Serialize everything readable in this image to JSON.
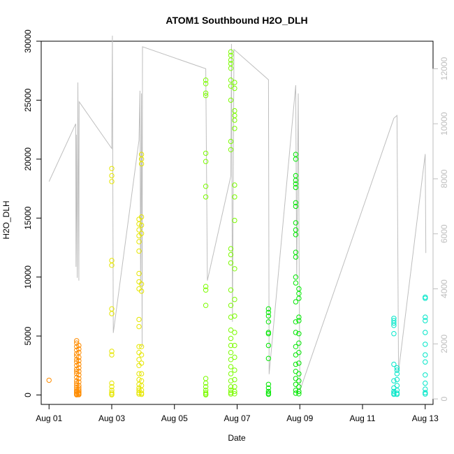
{
  "chart_data": {
    "type": "scatter",
    "title": "ATOM1 Southbound H2O_DLH",
    "xlabel": "Date",
    "ylabel": "H2O_DLH",
    "x_ticks": [
      "Aug 01",
      "Aug 03",
      "Aug 05",
      "Aug 07",
      "Aug 09",
      "Aug 11",
      "Aug 13"
    ],
    "x_range_days": [
      0.75,
      13.25
    ],
    "y_ticks": [
      0,
      5000,
      10000,
      15000,
      20000,
      25000,
      30000
    ],
    "ylim": [
      -800,
      30000
    ],
    "y2_ticks": [
      0,
      2000,
      4000,
      6000,
      8000,
      10000,
      12000
    ],
    "y2lim": [
      -200,
      13000
    ],
    "y2_color": "#bebebe",
    "grid": false,
    "legend": "none",
    "line_series_color": "#bebebe",
    "point_colors": {
      "Aug 01": "#ff8c00",
      "Aug 02": "#ff8c00",
      "Aug 03": "#e6e600",
      "Aug 04": "#e6e600",
      "Aug 06": "#7cfc00",
      "Aug 07": "#7cfc00",
      "Aug 08": "#00e600",
      "Aug 09": "#00e600",
      "Aug 12": "#00e6c8",
      "Aug 13": "#00e6c8"
    },
    "points_by_day": [
      {
        "day": 1.0,
        "color": "#ff8c00",
        "values": [
          1250
        ]
      },
      {
        "day": 1.88,
        "color": "#ff8c00",
        "values": [
          4600,
          4400,
          4100,
          3800,
          3500,
          3300,
          3000,
          2800,
          2500,
          2200,
          2000,
          1800,
          1500,
          1200,
          1000,
          800,
          600,
          400,
          300,
          200,
          100,
          50,
          20
        ]
      },
      {
        "day": 1.95,
        "color": "#ff8c00",
        "values": [
          4200,
          3900,
          3600,
          3200,
          2900,
          2600,
          2300,
          2000,
          1700,
          1400,
          1100,
          800,
          600,
          400,
          250,
          150,
          80,
          30
        ]
      },
      {
        "day": 3.0,
        "color": "#e6e600",
        "values": [
          19200,
          18600,
          18100,
          11400,
          11000,
          7300,
          6900,
          3700,
          3400,
          1000,
          700,
          400,
          200,
          80,
          20
        ]
      },
      {
        "day": 3.87,
        "color": "#e6e600",
        "values": [
          14900,
          14500,
          14000,
          13500,
          13000,
          12200,
          10300,
          9600,
          9000,
          6400,
          5800,
          4100,
          3600,
          3000,
          2500,
          1800,
          1300,
          900,
          600,
          400,
          200,
          80
        ]
      },
      {
        "day": 3.95,
        "color": "#e6e600",
        "values": [
          20400,
          20000,
          19600,
          15100,
          14400,
          13700,
          9400,
          8800,
          4100,
          3400,
          2700,
          1800,
          1200,
          800,
          400,
          150,
          50
        ]
      },
      {
        "day": 6.0,
        "color": "#7cfc00",
        "values": [
          26700,
          26400,
          25600,
          25400,
          20500,
          19800,
          17700,
          16800,
          9200,
          8900,
          7600,
          1400,
          1000,
          700,
          400,
          200,
          80,
          20
        ]
      },
      {
        "day": 6.8,
        "color": "#7cfc00",
        "values": [
          29100,
          28800,
          28400,
          28100,
          27700,
          26700,
          26200,
          25000,
          21500,
          20800,
          12400,
          11900,
          11200,
          8900,
          7600,
          6600,
          5500,
          4800,
          4200,
          3600,
          3000,
          2400,
          1800,
          1200,
          700,
          400,
          200,
          80
        ]
      },
      {
        "day": 6.92,
        "color": "#7cfc00",
        "values": [
          26500,
          26000,
          24100,
          23700,
          23300,
          22600,
          17800,
          16800,
          14800,
          10700,
          8100,
          6700,
          5300,
          4200,
          3200,
          2100,
          1300,
          700,
          300,
          100
        ]
      },
      {
        "day": 8.0,
        "color": "#00e600",
        "values": [
          7300,
          7000,
          6700,
          6200,
          5300,
          5200,
          4200,
          3100,
          900,
          600,
          300,
          150,
          60
        ]
      },
      {
        "day": 8.87,
        "color": "#00e600",
        "values": [
          20400,
          20000,
          18600,
          18200,
          17900,
          17600,
          16300,
          16000,
          14600,
          14000,
          13600,
          12100,
          11700,
          10000,
          9500,
          7900,
          6200,
          5300,
          4100,
          3400,
          2600,
          2000,
          1400,
          900,
          400,
          150
        ]
      },
      {
        "day": 8.97,
        "color": "#00e600",
        "values": [
          9000,
          8600,
          8200,
          6600,
          6300,
          5200,
          4400,
          3600,
          2700,
          1800,
          1200,
          700,
          300,
          100
        ]
      },
      {
        "day": 12.0,
        "color": "#00e6c8",
        "values": [
          6500,
          6300,
          6100,
          5900,
          5200,
          2600,
          1200,
          600,
          300,
          150,
          60
        ]
      },
      {
        "day": 12.1,
        "color": "#00e6c8",
        "values": [
          2300,
          2100,
          1800,
          1300,
          800,
          400,
          150,
          50
        ]
      },
      {
        "day": 13.0,
        "color": "#00e6c8",
        "values": [
          8300,
          8200,
          6600,
          6300,
          5300,
          4300,
          3400,
          2800,
          1700,
          1000,
          500,
          200,
          80
        ]
      }
    ],
    "secondary_line_series": [
      {
        "day": 1.0,
        "value": 7900
      },
      {
        "day": 1.85,
        "value": 10000
      },
      {
        "day": 1.86,
        "value": 4800
      },
      {
        "day": 1.87,
        "value": 9600
      },
      {
        "day": 1.9,
        "value": 4400
      },
      {
        "day": 1.92,
        "value": 11500
      },
      {
        "day": 1.95,
        "value": 4300
      },
      {
        "day": 1.96,
        "value": 10800
      },
      {
        "day": 3.0,
        "value": 9100
      },
      {
        "day": 3.02,
        "value": 13200
      },
      {
        "day": 3.05,
        "value": 2400
      },
      {
        "day": 3.87,
        "value": 9400
      },
      {
        "day": 3.9,
        "value": 11200
      },
      {
        "day": 3.92,
        "value": 4100
      },
      {
        "day": 3.95,
        "value": 11100
      },
      {
        "day": 3.97,
        "value": 1900
      },
      {
        "day": 3.98,
        "value": 12800
      },
      {
        "day": 6.0,
        "value": 12000
      },
      {
        "day": 6.05,
        "value": 4300
      },
      {
        "day": 6.8,
        "value": 8100
      },
      {
        "day": 6.82,
        "value": 12900
      },
      {
        "day": 6.85,
        "value": 2800
      },
      {
        "day": 6.9,
        "value": 12700
      },
      {
        "day": 8.0,
        "value": 11600
      },
      {
        "day": 8.02,
        "value": 900
      },
      {
        "day": 8.87,
        "value": 11400
      },
      {
        "day": 8.9,
        "value": 4400
      },
      {
        "day": 8.95,
        "value": 11100
      },
      {
        "day": 9.0,
        "value": 300
      },
      {
        "day": 12.0,
        "value": 10200
      },
      {
        "day": 12.1,
        "value": 10300
      },
      {
        "day": 12.15,
        "value": 1000
      },
      {
        "day": 13.0,
        "value": 8900
      },
      {
        "day": 13.02,
        "value": 5300
      }
    ]
  }
}
